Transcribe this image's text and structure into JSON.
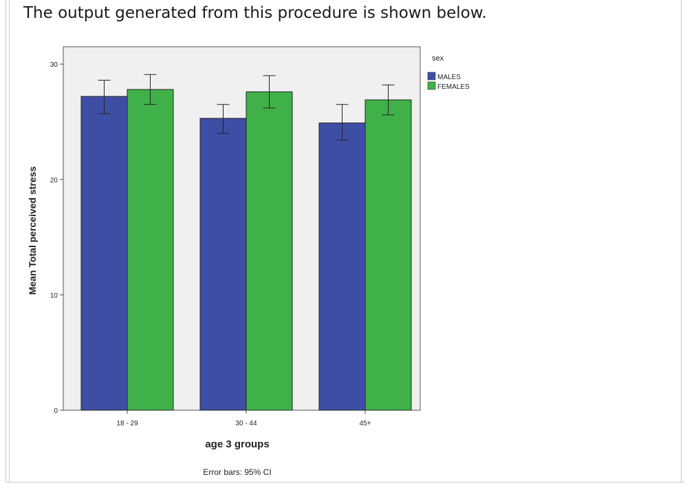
{
  "intro_text": "The output generated from this procedure is shown below.",
  "chart_data": {
    "type": "bar",
    "categories": [
      "18 - 29",
      "30 - 44",
      "45+"
    ],
    "series": [
      {
        "name": "MALES",
        "color": "#3f4ea5",
        "values": [
          27.2,
          25.3,
          24.9
        ],
        "ci_low": [
          25.7,
          24.0,
          23.4
        ],
        "ci_high": [
          28.6,
          26.5,
          26.5
        ]
      },
      {
        "name": "FEMALES",
        "color": "#3fb148",
        "values": [
          27.8,
          27.6,
          26.9
        ],
        "ci_low": [
          26.5,
          26.2,
          25.6
        ],
        "ci_high": [
          29.1,
          29.0,
          28.2
        ]
      }
    ],
    "xlabel": "age 3 groups",
    "ylabel": "Mean Total perceived stress",
    "ylim": [
      0,
      31.5
    ],
    "yticks": [
      0,
      10,
      20,
      30
    ],
    "legend_title": "sex",
    "legend_position": "top-right",
    "footnote": "Error bars: 95% CI",
    "plot_background": "#f0f0f0"
  }
}
